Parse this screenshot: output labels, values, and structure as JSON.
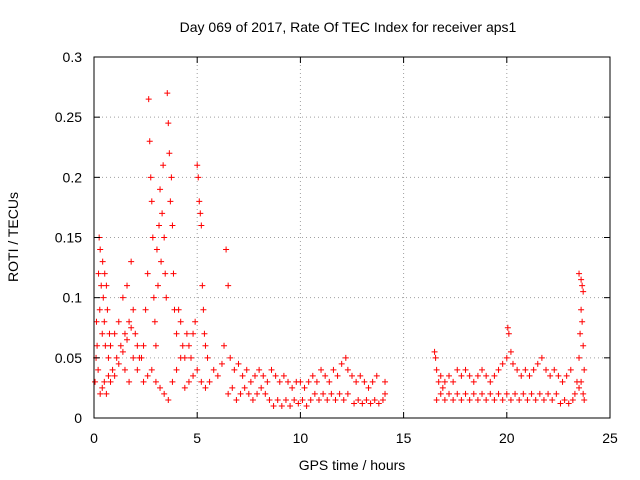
{
  "chart_data": {
    "type": "scatter",
    "title": "Day 069 of 2017, Rate Of TEC Index for receiver aps1",
    "xlabel": "GPS time / hours",
    "ylabel": "ROTI / TECUs",
    "xlim": [
      0,
      25
    ],
    "ylim": [
      0,
      0.3
    ],
    "x_ticks": [
      0,
      5,
      10,
      15,
      20,
      25
    ],
    "y_ticks": [
      0,
      0.05,
      0.1,
      0.15,
      0.2,
      0.25,
      0.3
    ],
    "x_tick_labels": [
      "0",
      "5",
      "10",
      "15",
      "20",
      "25"
    ],
    "y_tick_labels": [
      "0",
      "0.05",
      "0.1",
      "0.15",
      "0.2",
      "0.25",
      "0.3"
    ],
    "grid": true,
    "legend": "none",
    "marker": "plus",
    "color": "#ff0000",
    "series": [
      {
        "points": [
          [
            0.05,
            0.03
          ],
          [
            0.1,
            0.05
          ],
          [
            0.12,
            0.08
          ],
          [
            0.15,
            0.06
          ],
          [
            0.2,
            0.04
          ],
          [
            0.22,
            0.12
          ],
          [
            0.25,
            0.15
          ],
          [
            0.28,
            0.09
          ],
          [
            0.3,
            0.14
          ],
          [
            0.35,
            0.11
          ],
          [
            0.4,
            0.07
          ],
          [
            0.42,
            0.13
          ],
          [
            0.45,
            0.1
          ],
          [
            0.5,
            0.08
          ],
          [
            0.52,
            0.12
          ],
          [
            0.55,
            0.06
          ],
          [
            0.6,
            0.11
          ],
          [
            0.65,
            0.09
          ],
          [
            0.7,
            0.05
          ],
          [
            0.75,
            0.07
          ],
          [
            0.3,
            0.02
          ],
          [
            0.4,
            0.025
          ],
          [
            0.5,
            0.03
          ],
          [
            0.6,
            0.02
          ],
          [
            0.7,
            0.035
          ],
          [
            0.8,
            0.03
          ],
          [
            0.9,
            0.04
          ],
          [
            1.0,
            0.035
          ],
          [
            1.1,
            0.05
          ],
          [
            1.2,
            0.045
          ],
          [
            1.3,
            0.06
          ],
          [
            1.4,
            0.055
          ],
          [
            1.5,
            0.07
          ],
          [
            1.6,
            0.065
          ],
          [
            1.7,
            0.08
          ],
          [
            1.8,
            0.075
          ],
          [
            1.9,
            0.09
          ],
          [
            2.0,
            0.07
          ],
          [
            2.1,
            0.06
          ],
          [
            2.2,
            0.05
          ],
          [
            0.8,
            0.06
          ],
          [
            1.0,
            0.07
          ],
          [
            1.2,
            0.08
          ],
          [
            1.4,
            0.1
          ],
          [
            1.6,
            0.11
          ],
          [
            1.8,
            0.13
          ],
          [
            1.5,
            0.04
          ],
          [
            1.7,
            0.03
          ],
          [
            1.9,
            0.05
          ],
          [
            2.1,
            0.04
          ],
          [
            2.3,
            0.05
          ],
          [
            2.4,
            0.06
          ],
          [
            2.5,
            0.09
          ],
          [
            2.6,
            0.12
          ],
          [
            2.65,
            0.265
          ],
          [
            2.7,
            0.23
          ],
          [
            2.75,
            0.2
          ],
          [
            2.8,
            0.18
          ],
          [
            2.85,
            0.15
          ],
          [
            2.9,
            0.1
          ],
          [
            2.95,
            0.08
          ],
          [
            3.0,
            0.06
          ],
          [
            3.05,
            0.14
          ],
          [
            3.1,
            0.11
          ],
          [
            3.15,
            0.16
          ],
          [
            3.2,
            0.19
          ],
          [
            3.25,
            0.13
          ],
          [
            3.3,
            0.17
          ],
          [
            3.35,
            0.21
          ],
          [
            3.4,
            0.15
          ],
          [
            3.45,
            0.12
          ],
          [
            3.5,
            0.1
          ],
          [
            3.55,
            0.27
          ],
          [
            3.6,
            0.245
          ],
          [
            3.65,
            0.22
          ],
          [
            3.7,
            0.18
          ],
          [
            3.75,
            0.2
          ],
          [
            3.8,
            0.16
          ],
          [
            3.85,
            0.12
          ],
          [
            3.9,
            0.09
          ],
          [
            2.4,
            0.03
          ],
          [
            2.6,
            0.035
          ],
          [
            2.8,
            0.04
          ],
          [
            3.0,
            0.03
          ],
          [
            3.2,
            0.025
          ],
          [
            3.4,
            0.02
          ],
          [
            3.6,
            0.015
          ],
          [
            3.8,
            0.03
          ],
          [
            4.0,
            0.04
          ],
          [
            4.2,
            0.05
          ],
          [
            4.0,
            0.07
          ],
          [
            4.1,
            0.09
          ],
          [
            4.2,
            0.08
          ],
          [
            4.3,
            0.06
          ],
          [
            4.4,
            0.05
          ],
          [
            4.5,
            0.07
          ],
          [
            4.6,
            0.06
          ],
          [
            4.7,
            0.05
          ],
          [
            4.8,
            0.07
          ],
          [
            4.9,
            0.08
          ],
          [
            5.0,
            0.21
          ],
          [
            5.05,
            0.2
          ],
          [
            5.1,
            0.18
          ],
          [
            5.15,
            0.17
          ],
          [
            5.2,
            0.16
          ],
          [
            5.25,
            0.11
          ],
          [
            5.3,
            0.09
          ],
          [
            5.35,
            0.07
          ],
          [
            5.4,
            0.06
          ],
          [
            5.5,
            0.05
          ],
          [
            4.4,
            0.025
          ],
          [
            4.6,
            0.03
          ],
          [
            4.8,
            0.035
          ],
          [
            5.0,
            0.04
          ],
          [
            5.2,
            0.03
          ],
          [
            5.4,
            0.025
          ],
          [
            5.6,
            0.03
          ],
          [
            5.8,
            0.04
          ],
          [
            6.0,
            0.035
          ],
          [
            6.2,
            0.045
          ],
          [
            6.4,
            0.14
          ],
          [
            6.5,
            0.11
          ],
          [
            6.3,
            0.06
          ],
          [
            6.6,
            0.05
          ],
          [
            6.8,
            0.04
          ],
          [
            7.0,
            0.045
          ],
          [
            7.2,
            0.035
          ],
          [
            7.4,
            0.04
          ],
          [
            7.6,
            0.03
          ],
          [
            7.8,
            0.035
          ],
          [
            6.5,
            0.02
          ],
          [
            6.7,
            0.025
          ],
          [
            6.9,
            0.015
          ],
          [
            7.1,
            0.02
          ],
          [
            7.3,
            0.025
          ],
          [
            7.5,
            0.02
          ],
          [
            7.7,
            0.015
          ],
          [
            7.9,
            0.02
          ],
          [
            8.1,
            0.025
          ],
          [
            8.3,
            0.02
          ],
          [
            8.0,
            0.04
          ],
          [
            8.2,
            0.035
          ],
          [
            8.4,
            0.03
          ],
          [
            8.6,
            0.04
          ],
          [
            8.8,
            0.035
          ],
          [
            9.0,
            0.03
          ],
          [
            9.2,
            0.035
          ],
          [
            9.4,
            0.03
          ],
          [
            9.6,
            0.025
          ],
          [
            9.8,
            0.03
          ],
          [
            8.5,
            0.015
          ],
          [
            8.7,
            0.01
          ],
          [
            8.9,
            0.015
          ],
          [
            9.1,
            0.01
          ],
          [
            9.3,
            0.015
          ],
          [
            9.5,
            0.01
          ],
          [
            9.7,
            0.015
          ],
          [
            9.9,
            0.012
          ],
          [
            10.1,
            0.015
          ],
          [
            10.3,
            0.01
          ],
          [
            10.0,
            0.03
          ],
          [
            10.2,
            0.025
          ],
          [
            10.4,
            0.03
          ],
          [
            10.6,
            0.035
          ],
          [
            10.8,
            0.03
          ],
          [
            11.0,
            0.04
          ],
          [
            11.2,
            0.035
          ],
          [
            11.4,
            0.03
          ],
          [
            11.6,
            0.04
          ],
          [
            11.8,
            0.035
          ],
          [
            10.5,
            0.015
          ],
          [
            10.7,
            0.02
          ],
          [
            10.9,
            0.015
          ],
          [
            11.1,
            0.02
          ],
          [
            11.3,
            0.015
          ],
          [
            11.5,
            0.02
          ],
          [
            11.7,
            0.015
          ],
          [
            11.9,
            0.02
          ],
          [
            12.1,
            0.015
          ],
          [
            12.3,
            0.02
          ],
          [
            12.0,
            0.045
          ],
          [
            12.2,
            0.05
          ],
          [
            12.3,
            0.04
          ],
          [
            12.5,
            0.035
          ],
          [
            12.7,
            0.03
          ],
          [
            12.9,
            0.035
          ],
          [
            13.1,
            0.03
          ],
          [
            13.3,
            0.025
          ],
          [
            13.5,
            0.03
          ],
          [
            13.7,
            0.035
          ],
          [
            12.6,
            0.012
          ],
          [
            12.8,
            0.015
          ],
          [
            13.0,
            0.012
          ],
          [
            13.2,
            0.015
          ],
          [
            13.4,
            0.012
          ],
          [
            13.6,
            0.015
          ],
          [
            13.8,
            0.012
          ],
          [
            14.0,
            0.015
          ],
          [
            14.1,
            0.02
          ],
          [
            14.1,
            0.03
          ],
          [
            16.5,
            0.055
          ],
          [
            16.55,
            0.05
          ],
          [
            16.6,
            0.04
          ],
          [
            16.7,
            0.03
          ],
          [
            16.8,
            0.035
          ],
          [
            16.9,
            0.025
          ],
          [
            17.0,
            0.03
          ],
          [
            17.2,
            0.035
          ],
          [
            17.4,
            0.03
          ],
          [
            17.6,
            0.04
          ],
          [
            16.6,
            0.015
          ],
          [
            16.8,
            0.02
          ],
          [
            17.0,
            0.015
          ],
          [
            17.2,
            0.02
          ],
          [
            17.4,
            0.015
          ],
          [
            17.6,
            0.02
          ],
          [
            17.8,
            0.015
          ],
          [
            18.0,
            0.02
          ],
          [
            18.2,
            0.015
          ],
          [
            18.4,
            0.02
          ],
          [
            17.8,
            0.035
          ],
          [
            18.0,
            0.04
          ],
          [
            18.2,
            0.035
          ],
          [
            18.4,
            0.03
          ],
          [
            18.6,
            0.035
          ],
          [
            18.8,
            0.04
          ],
          [
            19.0,
            0.035
          ],
          [
            19.2,
            0.03
          ],
          [
            19.4,
            0.035
          ],
          [
            19.6,
            0.04
          ],
          [
            18.6,
            0.015
          ],
          [
            18.8,
            0.02
          ],
          [
            19.0,
            0.015
          ],
          [
            19.2,
            0.02
          ],
          [
            19.4,
            0.015
          ],
          [
            19.6,
            0.02
          ],
          [
            19.8,
            0.015
          ],
          [
            20.0,
            0.02
          ],
          [
            20.2,
            0.015
          ],
          [
            20.4,
            0.02
          ],
          [
            19.8,
            0.045
          ],
          [
            20.0,
            0.05
          ],
          [
            20.05,
            0.075
          ],
          [
            20.1,
            0.07
          ],
          [
            20.2,
            0.055
          ],
          [
            20.3,
            0.045
          ],
          [
            20.5,
            0.04
          ],
          [
            20.7,
            0.035
          ],
          [
            20.9,
            0.04
          ],
          [
            21.1,
            0.035
          ],
          [
            20.6,
            0.015
          ],
          [
            20.8,
            0.02
          ],
          [
            21.0,
            0.015
          ],
          [
            21.2,
            0.02
          ],
          [
            21.4,
            0.015
          ],
          [
            21.6,
            0.02
          ],
          [
            21.8,
            0.015
          ],
          [
            22.0,
            0.02
          ],
          [
            22.2,
            0.015
          ],
          [
            22.4,
            0.02
          ],
          [
            21.3,
            0.04
          ],
          [
            21.5,
            0.045
          ],
          [
            21.7,
            0.05
          ],
          [
            21.9,
            0.04
          ],
          [
            22.1,
            0.035
          ],
          [
            22.3,
            0.04
          ],
          [
            22.5,
            0.035
          ],
          [
            22.7,
            0.03
          ],
          [
            22.9,
            0.035
          ],
          [
            23.1,
            0.04
          ],
          [
            22.6,
            0.012
          ],
          [
            22.8,
            0.015
          ],
          [
            23.0,
            0.012
          ],
          [
            23.2,
            0.015
          ],
          [
            23.3,
            0.02
          ],
          [
            23.4,
            0.03
          ],
          [
            23.5,
            0.05
          ],
          [
            23.55,
            0.07
          ],
          [
            23.6,
            0.09
          ],
          [
            23.65,
            0.11
          ],
          [
            23.5,
            0.12
          ],
          [
            23.6,
            0.115
          ],
          [
            23.7,
            0.105
          ],
          [
            23.65,
            0.08
          ],
          [
            23.7,
            0.06
          ],
          [
            23.75,
            0.04
          ],
          [
            23.6,
            0.03
          ],
          [
            23.7,
            0.02
          ],
          [
            23.75,
            0.015
          ],
          [
            23.5,
            0.025
          ]
        ]
      }
    ]
  }
}
